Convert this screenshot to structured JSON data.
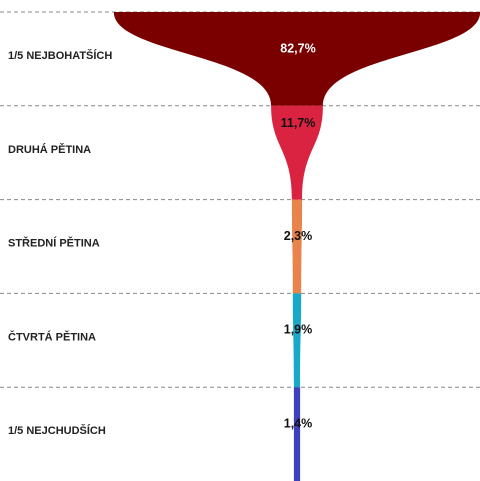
{
  "chart_data": {
    "type": "funnel",
    "categories": [
      "1/5 NEJBOHATŠÍCH",
      "DRUHÁ PĚTINA",
      "STŘEDNÍ PĚTINA",
      "ČTVRTÁ PĚTINA",
      "1/5 NEJCHUDŠÍCH"
    ],
    "values": [
      82.7,
      11.7,
      2.3,
      1.9,
      1.4
    ],
    "value_labels": [
      "82,7%",
      "11,7%",
      "2,3%",
      "1,9%",
      "1,4%"
    ],
    "colors": [
      "#7a0000",
      "#da2340",
      "#e8834b",
      "#18a9c9",
      "#3f3fbf"
    ]
  }
}
